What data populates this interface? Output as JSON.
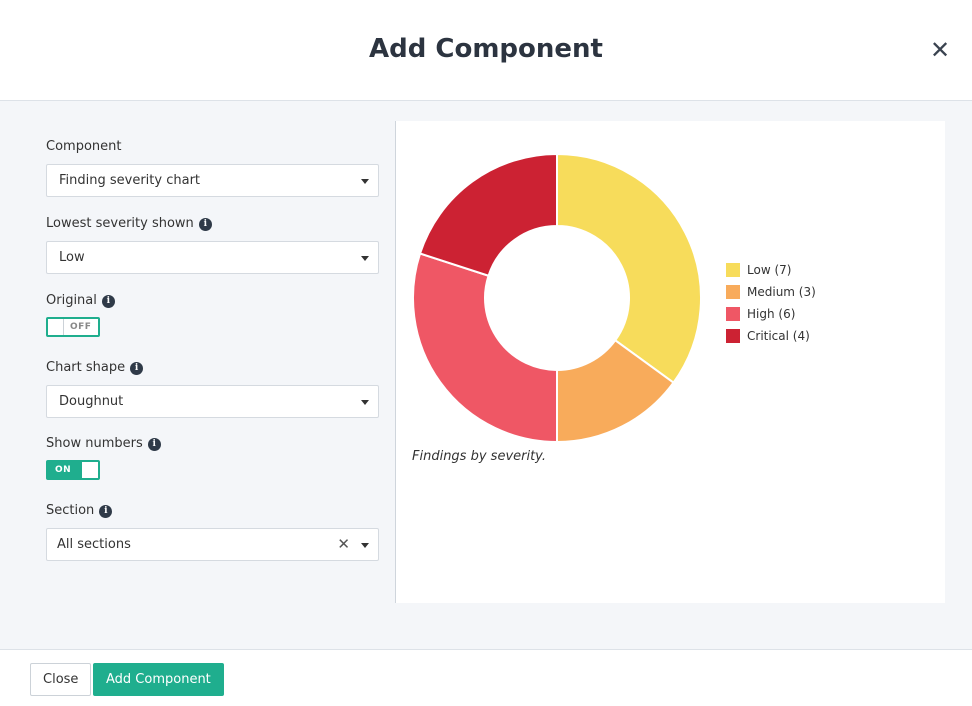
{
  "modal": {
    "title": "Add Component"
  },
  "form": {
    "component": {
      "label": "Component",
      "value": "Finding severity chart"
    },
    "lowest_severity": {
      "label": "Lowest severity shown",
      "value": "Low"
    },
    "original": {
      "label": "Original",
      "state": "OFF"
    },
    "chart_shape": {
      "label": "Chart shape",
      "value": "Doughnut"
    },
    "show_numbers": {
      "label": "Show numbers",
      "state": "ON"
    },
    "section": {
      "label": "Section",
      "value": "All sections"
    }
  },
  "preview": {
    "caption": "Findings by severity.",
    "legend": [
      {
        "label": "Low (7)",
        "color": "#f7dc5b"
      },
      {
        "label": "Medium (3)",
        "color": "#f8ab5b"
      },
      {
        "label": "High (6)",
        "color": "#ef5765"
      },
      {
        "label": "Critical (4)",
        "color": "#cc2233"
      }
    ]
  },
  "chart_data": {
    "type": "pie",
    "variant": "doughnut",
    "categories": [
      "Low",
      "Medium",
      "High",
      "Critical"
    ],
    "values": [
      7,
      3,
      6,
      4
    ],
    "colors": [
      "#f7dc5b",
      "#f8ab5b",
      "#ef5765",
      "#cc2233"
    ],
    "legend_position": "right"
  },
  "footer": {
    "close_label": "Close",
    "add_label": "Add Component"
  },
  "icons": {
    "close": "close-icon",
    "info": "info-icon",
    "caret": "caret-down-icon",
    "clear": "clear-icon"
  }
}
